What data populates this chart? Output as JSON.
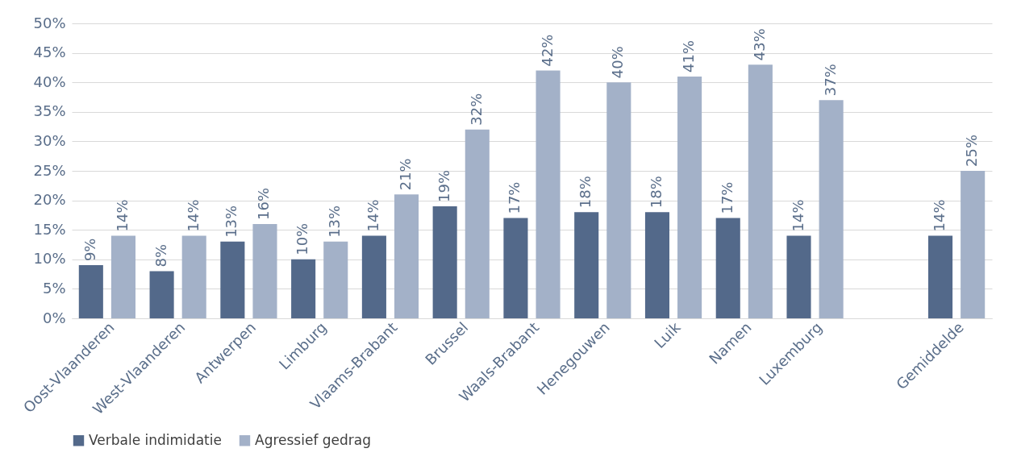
{
  "chart_data": {
    "type": "bar",
    "categories": [
      "Oost-Vlaanderen",
      "West-Vlaanderen",
      "Antwerpen",
      "Limburg",
      "Vlaams-Brabant",
      "Brussel",
      "Waals-Brabant",
      "Henegouwen",
      "Luik",
      "Namen",
      "Luxemburg",
      null,
      "Gemiddelde"
    ],
    "series": [
      {
        "name": "Verbale indimidatie",
        "color": "#53698a",
        "values": [
          9,
          8,
          13,
          10,
          14,
          19,
          17,
          18,
          18,
          17,
          14,
          null,
          14
        ],
        "value_labels": [
          "9%",
          "8%",
          "13%",
          "10%",
          "14%",
          "19%",
          "17%",
          "18%",
          "18%",
          "17%",
          "14%",
          null,
          "14%"
        ]
      },
      {
        "name": "Agressief gedrag",
        "color": "#a3b1c8",
        "values": [
          14,
          14,
          16,
          13,
          21,
          32,
          42,
          40,
          41,
          43,
          37,
          null,
          25
        ],
        "value_labels": [
          "14%",
          "14%",
          "16%",
          "13%",
          "21%",
          "32%",
          "42%",
          "40%",
          "41%",
          "43%",
          "37%",
          null,
          "25%"
        ]
      }
    ],
    "ylim": [
      0,
      50
    ],
    "yticks": [
      {
        "value": 0,
        "label": "0%"
      },
      {
        "value": 5,
        "label": "5%"
      },
      {
        "value": 10,
        "label": "10%"
      },
      {
        "value": 15,
        "label": "15%"
      },
      {
        "value": 20,
        "label": "20%"
      },
      {
        "value": 25,
        "label": "25%"
      },
      {
        "value": 30,
        "label": "30%"
      },
      {
        "value": 35,
        "label": "35%"
      },
      {
        "value": 40,
        "label": "40%"
      },
      {
        "value": 45,
        "label": "45%"
      },
      {
        "value": 50,
        "label": "50%"
      }
    ],
    "grid": "y",
    "legend": "bottom"
  }
}
